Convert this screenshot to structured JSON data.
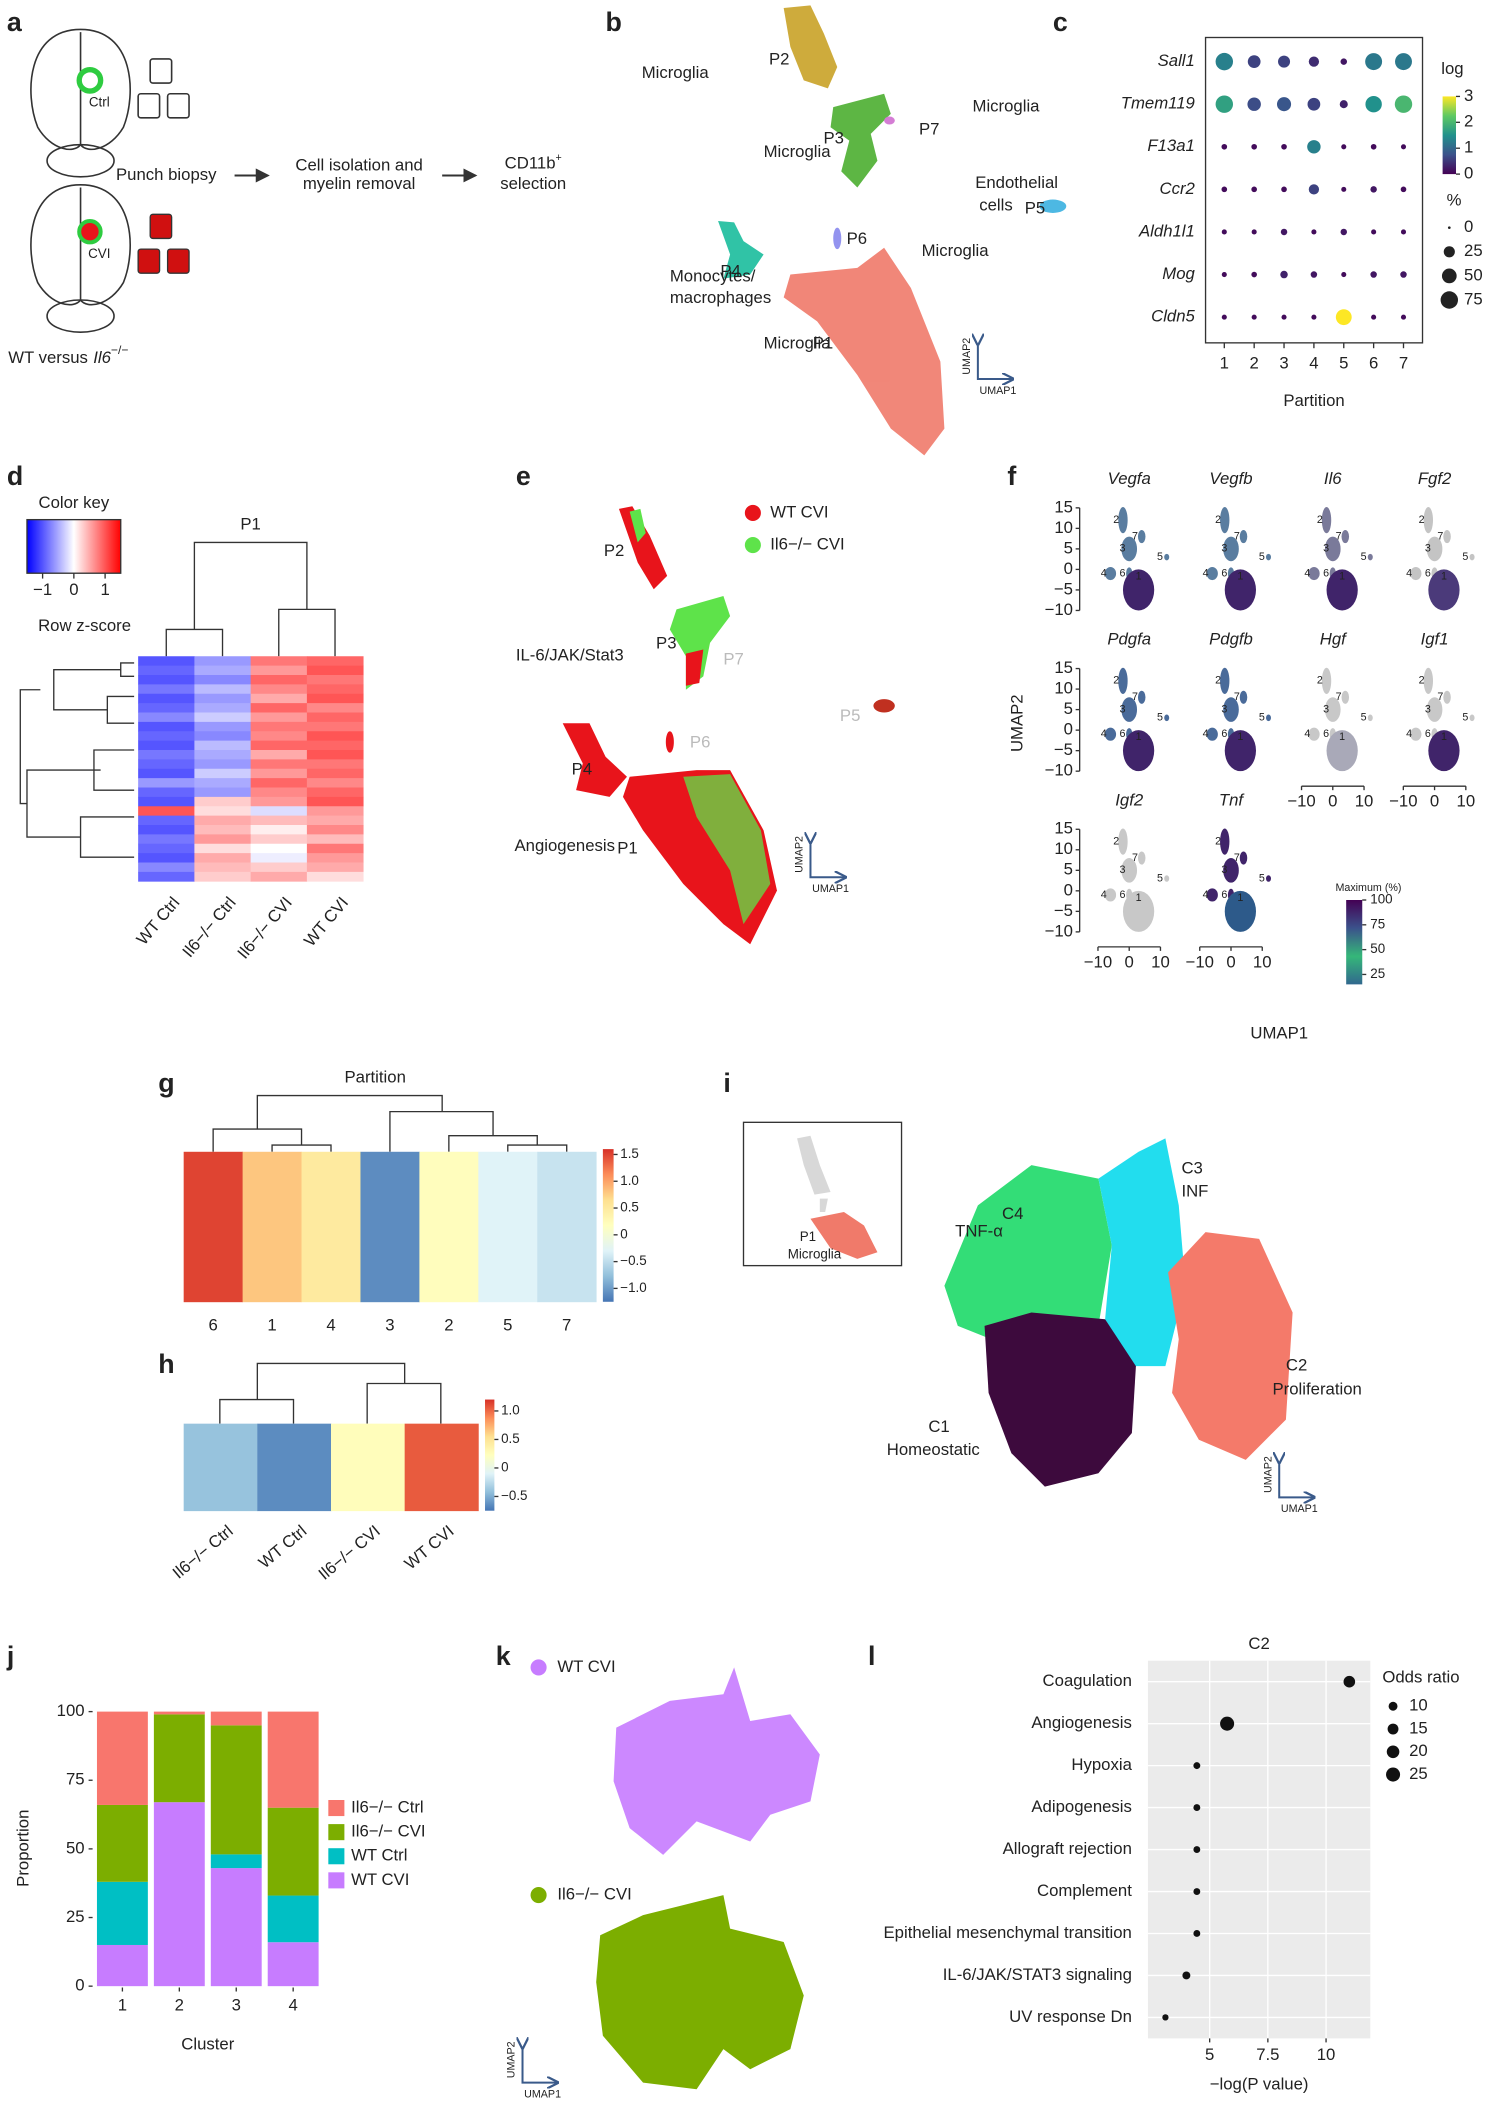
{
  "panel_labels": [
    "a",
    "b",
    "c",
    "d",
    "e",
    "f",
    "g",
    "h",
    "i",
    "j",
    "k",
    "l"
  ],
  "axis_labels": {
    "x": "UMAP1",
    "y": "UMAP2"
  },
  "panel_a": {
    "ctrl": "Ctrl",
    "cvi": "CVI",
    "step1": "Punch biopsy",
    "step2": [
      "Cell isolation and",
      "myelin removal"
    ],
    "step3": {
      "marker": "CD11b",
      "sup": "+",
      "line2": "selection"
    },
    "genotype": {
      "prefix": "WT versus",
      "gene": "Il6",
      "sup": "−/−"
    }
  },
  "panel_b": {
    "labels": [
      "Microglia",
      "P2",
      "Microglia",
      "P7",
      "Microglia",
      "P3",
      "Endothelial",
      "cells",
      "P5",
      "P6",
      "Microglia",
      "Monocytes/",
      "macrophages",
      "P4",
      "Microglia",
      "P1"
    ]
  },
  "panel_e": {
    "labels": [
      "P2",
      "IL-6/JAK/Stat3",
      "P3",
      "P7",
      "P5",
      "P6",
      "P4",
      "Angiogenesis",
      "P1"
    ],
    "legend": [
      {
        "name": "WT CVI",
        "color": "#e8141b"
      },
      {
        "name": "Il6−/− CVI",
        "color": "#5ee34a"
      }
    ]
  },
  "panel_f": {
    "genes": [
      "Vegfa",
      "Vegfb",
      "Il6",
      "Fgf2",
      "Pdgfa",
      "Pdgfb",
      "Hgf",
      "Igf1",
      "Igf2",
      "Tnf"
    ],
    "colors": [
      [
        "#40246a",
        "#5a7da0"
      ],
      [
        "#40246a",
        "#5a7da0"
      ],
      [
        "#40246a",
        "#7a7a9a"
      ],
      [
        "#4b3a7a",
        "#c4c4c4"
      ],
      [
        "#40246a",
        "#4a6b9a"
      ],
      [
        "#40246a",
        "#4a6b9a"
      ],
      [
        "#a9a9b8",
        "#c8c8c8"
      ],
      [
        "#40246a",
        "#c8c8c8"
      ],
      [
        "#c8c8c8",
        "#c8c8c8"
      ],
      [
        "#2d5a8a",
        "#40246a"
      ]
    ],
    "cluster_labels": [
      "2",
      "7",
      "3",
      "6",
      "4",
      "5",
      "1"
    ],
    "xlim": [
      -15,
      15
    ],
    "ylim": [
      -13,
      18
    ],
    "xticks": [
      {
        "value": -10,
        "label": "−10"
      },
      0,
      10
    ],
    "yticks": [
      15,
      10,
      5,
      0,
      {
        "value": -5,
        "label": "−5"
      },
      {
        "value": -10,
        "label": "−10"
      }
    ],
    "colorbar_title": "Maximum (%)",
    "colorbar_lim": [
      15,
      100
    ],
    "colorbar_ticks": [
      25,
      50,
      75,
      100
    ],
    "colorbar_colors": [
      "#31688e",
      "#35b779",
      "#3b528b",
      "#440154"
    ]
  },
  "panel_i": {
    "labels": [
      "C3",
      "INF",
      "C4",
      "TNF-α",
      "C2",
      "Proliferation",
      "C1",
      "Homeostatic",
      "P1",
      "Microglia"
    ]
  },
  "panel_k": {
    "legend": [
      {
        "name": "WT CVI",
        "color": "#c77cff"
      },
      {
        "name": "Il6−/− CVI",
        "color": "#7cae00"
      }
    ]
  },
  "chart_data": [
    {
      "type": "dotplot",
      "x_label": "Partition",
      "categories": [
        "1",
        "2",
        "3",
        "4",
        "5",
        "6",
        "7"
      ],
      "series": [
        {
          "name": "Sall1",
          "values": [
            1.3,
            0.6,
            0.6,
            0.4,
            0.2,
            1.2,
            1.2
          ],
          "sizes": [
            75,
            35,
            30,
            20,
            5,
            70,
            70
          ]
        },
        {
          "name": "Tmem119",
          "values": [
            1.7,
            0.7,
            0.8,
            0.6,
            0.3,
            1.5,
            2.0
          ],
          "sizes": [
            75,
            40,
            45,
            35,
            10,
            65,
            75
          ]
        },
        {
          "name": "F13a1",
          "values": [
            0.1,
            0.1,
            0.1,
            1.3,
            0.1,
            0.1,
            0.1
          ],
          "sizes": [
            3,
            3,
            3,
            40,
            2,
            3,
            2
          ]
        },
        {
          "name": "Ccr2",
          "values": [
            0.1,
            0.1,
            0.1,
            0.6,
            0.1,
            0.2,
            0.1
          ],
          "sizes": [
            3,
            3,
            3,
            20,
            2,
            5,
            3
          ]
        },
        {
          "name": "Aldh1l1",
          "values": [
            0.1,
            0.1,
            0.2,
            0.1,
            0.2,
            0.1,
            0.1
          ],
          "sizes": [
            2,
            2,
            5,
            2,
            5,
            2,
            2
          ]
        },
        {
          "name": "Mog",
          "values": [
            0.1,
            0.1,
            0.3,
            0.2,
            0.1,
            0.2,
            0.2
          ],
          "sizes": [
            2,
            3,
            8,
            5,
            2,
            5,
            5
          ]
        },
        {
          "name": "Cldn5",
          "values": [
            0.1,
            0.1,
            0.1,
            0.1,
            3,
            0.1,
            0.1
          ],
          "sizes": [
            2,
            2,
            2,
            2,
            60,
            2,
            2
          ]
        }
      ],
      "color_label": "log",
      "colorlim": [
        0,
        3
      ],
      "colorticks": [
        0,
        1,
        2,
        3
      ],
      "colormap": [
        "#440154",
        "#3b528b",
        "#21918c",
        "#5ec962",
        "#fde725"
      ],
      "size_label": "%",
      "size_legend": [
        0,
        25,
        50,
        75
      ]
    },
    {
      "type": "heatmap",
      "title": "P1",
      "colorkey_title": "Color key",
      "colorkey_label": "Row z-score",
      "categories": [
        "WT Ctrl",
        "Il6−/− Ctrl",
        "Il6−/− CVI",
        "WT CVI"
      ],
      "values": [
        [
          -1,
          -0.6,
          0.8,
          0.9
        ],
        [
          -0.9,
          -0.5,
          0.6,
          1
        ],
        [
          -1,
          -0.7,
          0.9,
          0.8
        ],
        [
          -0.8,
          -0.4,
          0.7,
          0.9
        ],
        [
          -1,
          -0.6,
          0.5,
          1
        ],
        [
          -0.9,
          -0.5,
          0.9,
          0.7
        ],
        [
          -0.7,
          -0.3,
          0.6,
          0.9
        ],
        [
          -1,
          -0.6,
          0.8,
          0.8
        ],
        [
          -0.9,
          -0.7,
          0.7,
          1
        ],
        [
          -1,
          -0.4,
          0.9,
          0.9
        ],
        [
          -0.8,
          -0.5,
          0.5,
          1
        ],
        [
          -0.9,
          -0.6,
          0.8,
          0.8
        ],
        [
          -1,
          -0.3,
          0.6,
          0.9
        ],
        [
          -0.6,
          -0.5,
          0.9,
          0.7
        ],
        [
          -0.9,
          -0.6,
          0.7,
          0.9
        ],
        [
          -1,
          0.3,
          0.6,
          1
        ],
        [
          1,
          0.2,
          -0.2,
          0.6
        ],
        [
          -0.9,
          0.5,
          0.4,
          0.5
        ],
        [
          -1,
          0.4,
          0.1,
          0.7
        ],
        [
          -0.8,
          0.6,
          0.3,
          0.4
        ],
        [
          -0.9,
          0.2,
          0,
          0.8
        ],
        [
          -1,
          0.5,
          -0.1,
          0.6
        ],
        [
          -0.7,
          0.4,
          0.3,
          0.5
        ],
        [
          -0.9,
          0.3,
          0.5,
          0.2
        ]
      ],
      "zlim": [
        -1.5,
        1.5
      ],
      "zticks": [
        {
          "value": -1,
          "label": "−1"
        },
        0,
        1
      ],
      "colors": [
        "#0000ff",
        "#ffffff",
        "#ff0000"
      ]
    },
    {
      "type": "heatmap",
      "title": "Partition",
      "categories": [
        "6",
        "1",
        "4",
        "3",
        "2",
        "5",
        "7"
      ],
      "values": [
        [
          1.5,
          0.8,
          0.5,
          -1.1,
          0.2,
          -0.3,
          -0.45
        ]
      ],
      "zlim": [
        -1.25,
        1.6
      ],
      "zticks": [
        {
          "value": 1.5,
          "label": "1.5"
        },
        {
          "value": 1,
          "label": "1.0"
        },
        0.5,
        0,
        {
          "value": -0.5,
          "label": "−0.5"
        },
        {
          "value": -1,
          "label": "−1.0"
        }
      ],
      "colors": [
        "#4575b4",
        "#91bfdb",
        "#e0f3f8",
        "#ffffbf",
        "#fee090",
        "#fc8d59",
        "#d73027"
      ]
    },
    {
      "type": "heatmap",
      "categories": [
        "Il6−/− Ctrl",
        "WT Ctrl",
        "Il6−/− CVI",
        "WT CVI"
      ],
      "values": [
        [
          -0.4,
          -0.65,
          0.25,
          1.05
        ]
      ],
      "zlim": [
        -0.75,
        1.2
      ],
      "zticks": [
        {
          "value": 1,
          "label": "1.0"
        },
        0.5,
        0,
        {
          "value": -0.5,
          "label": "−0.5"
        }
      ],
      "colors": [
        "#4575b4",
        "#91bfdb",
        "#e0f3f8",
        "#ffffbf",
        "#fee090",
        "#fc8d59",
        "#d73027"
      ]
    },
    {
      "type": "bar",
      "stacked": true,
      "x_label": "Cluster",
      "y_label": "Proportion",
      "categories": [
        "1",
        "2",
        "3",
        "4"
      ],
      "series": [
        {
          "name": "WT CVI",
          "color": "#c77cff",
          "values": [
            15,
            67,
            43,
            16
          ]
        },
        {
          "name": "WT Ctrl",
          "color": "#00bfc4",
          "values": [
            23,
            0,
            5,
            17
          ]
        },
        {
          "name": "Il6−/− CVI",
          "color": "#7cae00",
          "values": [
            28,
            32,
            47,
            32
          ]
        },
        {
          "name": "Il6−/− Ctrl",
          "color": "#f8766d",
          "values": [
            34,
            1,
            5,
            35
          ]
        }
      ],
      "ylim": [
        0,
        100
      ],
      "yticks": [
        0,
        25,
        50,
        75,
        100
      ]
    },
    {
      "type": "scatter",
      "title": "C2",
      "x_label": "−log(P value)",
      "categories": [
        "Coagulation",
        "Angiogenesis",
        "Hypoxia",
        "Adipogenesis",
        "Allograft rejection",
        "Complement",
        "Epithelial mesenchymal transition",
        "IL-6/JAK/STAT3 signaling",
        "UV response Dn"
      ],
      "values": [
        11.0,
        5.75,
        4.45,
        4.45,
        4.45,
        4.45,
        4.45,
        4.0,
        3.1
      ],
      "sizes": [
        17,
        25,
        6,
        6,
        6,
        6,
        6,
        8,
        5
      ],
      "size_label": "Odds ratio",
      "size_legend": [
        10,
        15,
        20,
        25
      ],
      "xlim": [
        2.35,
        11.9
      ],
      "xticks": [
        5,
        7.5,
        10
      ],
      "grid": true
    }
  ]
}
